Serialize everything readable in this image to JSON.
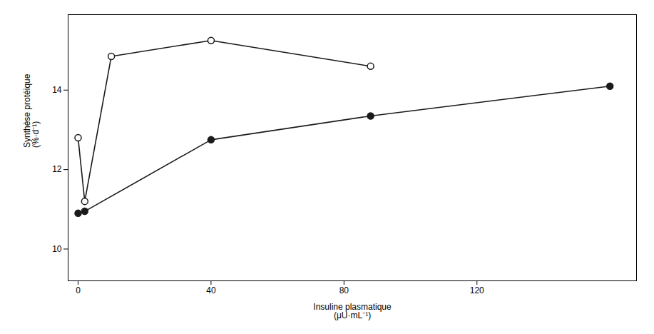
{
  "chart_data": {
    "type": "line",
    "xlabel": "Insuline plasmatique\n(μU·mL⁻¹)",
    "ylabel": "Synthèse protéique\n(%·d⁻¹)",
    "series": [
      {
        "x": [
          0,
          2,
          10,
          40,
          88
        ],
        "values": [
          12.8,
          11.2,
          14.85,
          15.25,
          14.6
        ],
        "color": "#1a1a1a",
        "marker": "open_circle",
        "line_style": "solid"
      },
      {
        "x": [
          0,
          2,
          40,
          88,
          160
        ],
        "values": [
          10.9,
          10.95,
          12.75,
          13.35,
          14.1
        ],
        "color": "#1a1a1a",
        "marker": "circle",
        "line_style": "solid"
      }
    ],
    "xlim": [
      -3,
      168
    ],
    "xticks": [
      0,
      40,
      80,
      120
    ],
    "ylim": [
      9.2,
      15.9
    ],
    "yticks": [
      10,
      12,
      14
    ],
    "grid": false
  }
}
